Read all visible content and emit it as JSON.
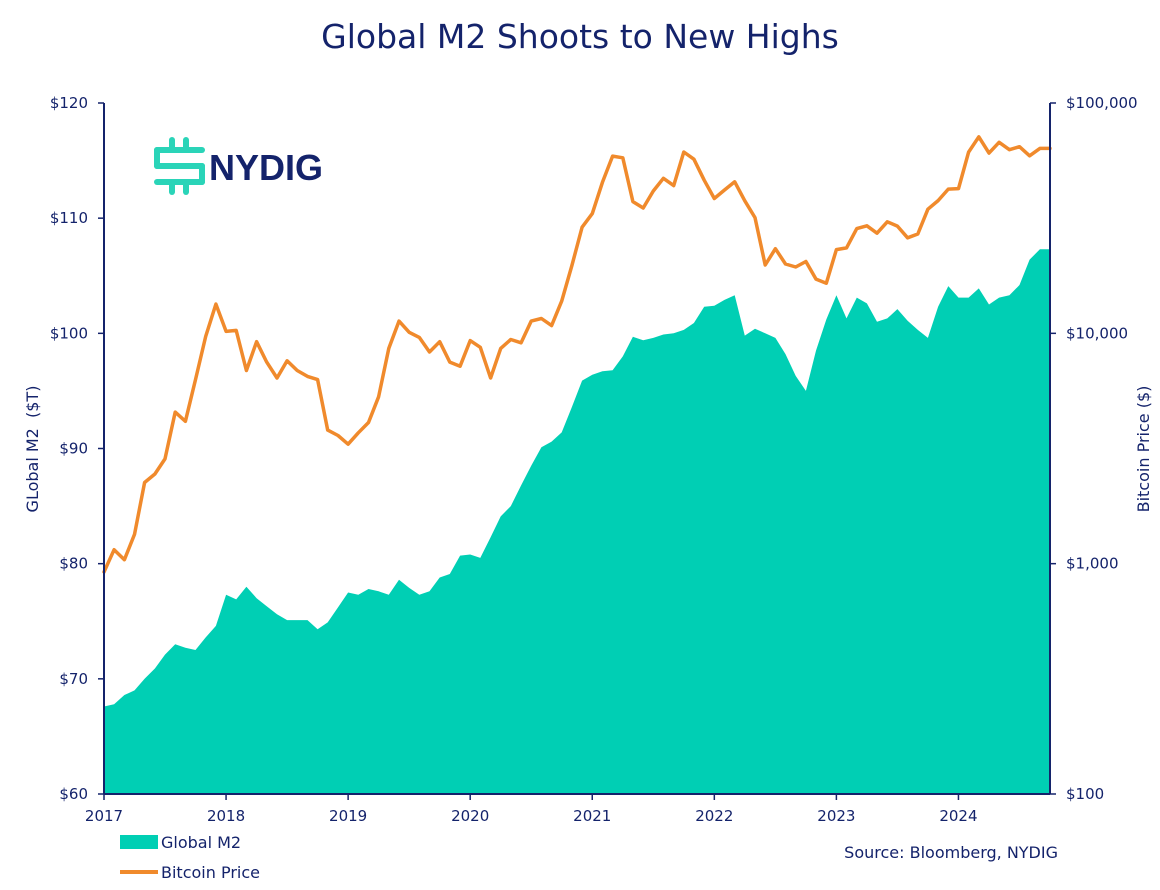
{
  "colors": {
    "m2_fill": "#00cfb4",
    "btc_line": "#f08a2c",
    "axis": "#14236b",
    "text": "#14236b",
    "logo_icon": "#2ad4b8"
  },
  "logo": {
    "text": "NYDIG"
  },
  "legend": {
    "m2_label": "Global M2",
    "btc_label": "Bitcoin Price"
  },
  "source": "Source: Bloomberg, NYDIG",
  "chart_data": {
    "type": "area+line",
    "title": "Global M2 Shoots to New Highs",
    "xlabel": "",
    "ylabel_left": "GLobal M2  ($T)",
    "ylabel_right": "Bitcoin Price ($)",
    "xlim": [
      2017.0,
      2024.75
    ],
    "ylim_left": [
      60,
      120
    ],
    "ylim_right": [
      100,
      100000
    ],
    "right_scale": "log",
    "x_ticks": [
      {
        "value": 2017,
        "label": "2017"
      },
      {
        "value": 2018,
        "label": "2018"
      },
      {
        "value": 2019,
        "label": "2019"
      },
      {
        "value": 2020,
        "label": "2020"
      },
      {
        "value": 2021,
        "label": "2021"
      },
      {
        "value": 2022,
        "label": "2022"
      },
      {
        "value": 2023,
        "label": "2023"
      },
      {
        "value": 2024,
        "label": "2024"
      }
    ],
    "y_ticks_left": [
      {
        "value": 60,
        "label": "$60"
      },
      {
        "value": 70,
        "label": "$70"
      },
      {
        "value": 80,
        "label": "$80"
      },
      {
        "value": 90,
        "label": "$90"
      },
      {
        "value": 100,
        "label": "$100"
      },
      {
        "value": 110,
        "label": "$110"
      },
      {
        "value": 120,
        "label": "$120"
      }
    ],
    "y_ticks_right": [
      {
        "value": 100,
        "label": "$100"
      },
      {
        "value": 1000,
        "label": "$1,000"
      },
      {
        "value": 10000,
        "label": "$10,000"
      },
      {
        "value": 100000,
        "label": "$100,000"
      }
    ],
    "series": [
      {
        "name": "Global M2",
        "type": "area",
        "axis": "left",
        "x": [
          2017.0,
          2017.083,
          2017.167,
          2017.25,
          2017.333,
          2017.417,
          2017.5,
          2017.583,
          2017.667,
          2017.75,
          2017.833,
          2017.917,
          2018.0,
          2018.083,
          2018.167,
          2018.25,
          2018.333,
          2018.417,
          2018.5,
          2018.583,
          2018.667,
          2018.75,
          2018.833,
          2018.917,
          2019.0,
          2019.083,
          2019.167,
          2019.25,
          2019.333,
          2019.417,
          2019.5,
          2019.583,
          2019.667,
          2019.75,
          2019.833,
          2019.917,
          2020.0,
          2020.083,
          2020.167,
          2020.25,
          2020.333,
          2020.417,
          2020.5,
          2020.583,
          2020.667,
          2020.75,
          2020.833,
          2020.917,
          2021.0,
          2021.083,
          2021.167,
          2021.25,
          2021.333,
          2021.417,
          2021.5,
          2021.583,
          2021.667,
          2021.75,
          2021.833,
          2021.917,
          2022.0,
          2022.083,
          2022.167,
          2022.25,
          2022.333,
          2022.417,
          2022.5,
          2022.583,
          2022.667,
          2022.75,
          2022.833,
          2022.917,
          2023.0,
          2023.083,
          2023.167,
          2023.25,
          2023.333,
          2023.417,
          2023.5,
          2023.583,
          2023.667,
          2023.75,
          2023.833,
          2023.917,
          2024.0,
          2024.083,
          2024.167,
          2024.25,
          2024.333,
          2024.417,
          2024.5,
          2024.583,
          2024.667,
          2024.75
        ],
        "values": [
          67.6,
          67.8,
          68.6,
          69.0,
          70.0,
          70.9,
          72.1,
          73.0,
          72.7,
          72.5,
          73.6,
          74.6,
          77.3,
          76.9,
          78.0,
          77.0,
          76.3,
          75.6,
          75.1,
          75.1,
          75.1,
          74.3,
          74.9,
          76.2,
          77.5,
          77.3,
          77.8,
          77.6,
          77.3,
          78.6,
          77.9,
          77.3,
          77.6,
          78.8,
          79.1,
          80.7,
          80.8,
          80.5,
          82.3,
          84.1,
          85.0,
          86.8,
          88.5,
          90.1,
          90.6,
          91.4,
          93.6,
          95.9,
          96.4,
          96.7,
          96.8,
          98.0,
          99.7,
          99.4,
          99.6,
          99.9,
          100.0,
          100.3,
          100.9,
          102.3,
          102.4,
          102.9,
          103.3,
          99.8,
          100.4,
          100.0,
          99.6,
          98.2,
          96.3,
          95.0,
          98.5,
          101.2,
          103.3,
          101.3,
          103.1,
          102.6,
          101.0,
          101.3,
          102.1,
          101.1,
          100.3,
          99.6,
          102.3,
          104.1,
          103.1,
          103.1,
          103.9,
          102.5,
          103.1,
          103.3,
          104.2,
          106.4,
          107.3,
          107.3
        ]
      },
      {
        "name": "Bitcoin Price",
        "type": "line",
        "axis": "right",
        "x": [
          2017.0,
          2017.083,
          2017.167,
          2017.25,
          2017.333,
          2017.417,
          2017.5,
          2017.583,
          2017.667,
          2017.75,
          2017.833,
          2017.917,
          2018.0,
          2018.083,
          2018.167,
          2018.25,
          2018.333,
          2018.417,
          2018.5,
          2018.583,
          2018.667,
          2018.75,
          2018.833,
          2018.917,
          2019.0,
          2019.083,
          2019.167,
          2019.25,
          2019.333,
          2019.417,
          2019.5,
          2019.583,
          2019.667,
          2019.75,
          2019.833,
          2019.917,
          2020.0,
          2020.083,
          2020.167,
          2020.25,
          2020.333,
          2020.417,
          2020.5,
          2020.583,
          2020.667,
          2020.75,
          2020.833,
          2020.917,
          2021.0,
          2021.083,
          2021.167,
          2021.25,
          2021.333,
          2021.417,
          2021.5,
          2021.583,
          2021.667,
          2021.75,
          2021.833,
          2021.917,
          2022.0,
          2022.083,
          2022.167,
          2022.25,
          2022.333,
          2022.417,
          2022.5,
          2022.583,
          2022.667,
          2022.75,
          2022.833,
          2022.917,
          2023.0,
          2023.083,
          2023.167,
          2023.25,
          2023.333,
          2023.417,
          2023.5,
          2023.583,
          2023.667,
          2023.75,
          2023.833,
          2023.917,
          2024.0,
          2024.083,
          2024.167,
          2024.25,
          2024.333,
          2024.417,
          2024.5,
          2024.583,
          2024.667,
          2024.75
        ],
        "values": [
          920,
          1150,
          1040,
          1340,
          2250,
          2450,
          2850,
          4550,
          4150,
          6300,
          9700,
          13400,
          10200,
          10300,
          6900,
          9200,
          7500,
          6400,
          7600,
          6900,
          6500,
          6300,
          3800,
          3600,
          3300,
          3700,
          4100,
          5300,
          8600,
          11300,
          10100,
          9600,
          8300,
          9200,
          7500,
          7200,
          9300,
          8700,
          6400,
          8600,
          9400,
          9100,
          11300,
          11600,
          10800,
          13800,
          19700,
          28900,
          33100,
          45200,
          58800,
          57800,
          37300,
          35000,
          41500,
          47100,
          43800,
          61300,
          57000,
          46200,
          38500,
          41900,
          45500,
          37600,
          31800,
          19800,
          23300,
          20000,
          19400,
          20500,
          17200,
          16500,
          23100,
          23500,
          28500,
          29300,
          27200,
          30500,
          29200,
          26000,
          27000,
          34600,
          37700,
          42300,
          42500,
          61200,
          71300,
          60600,
          67500,
          62700,
          64600,
          59000,
          63500,
          63500
        ]
      }
    ]
  }
}
